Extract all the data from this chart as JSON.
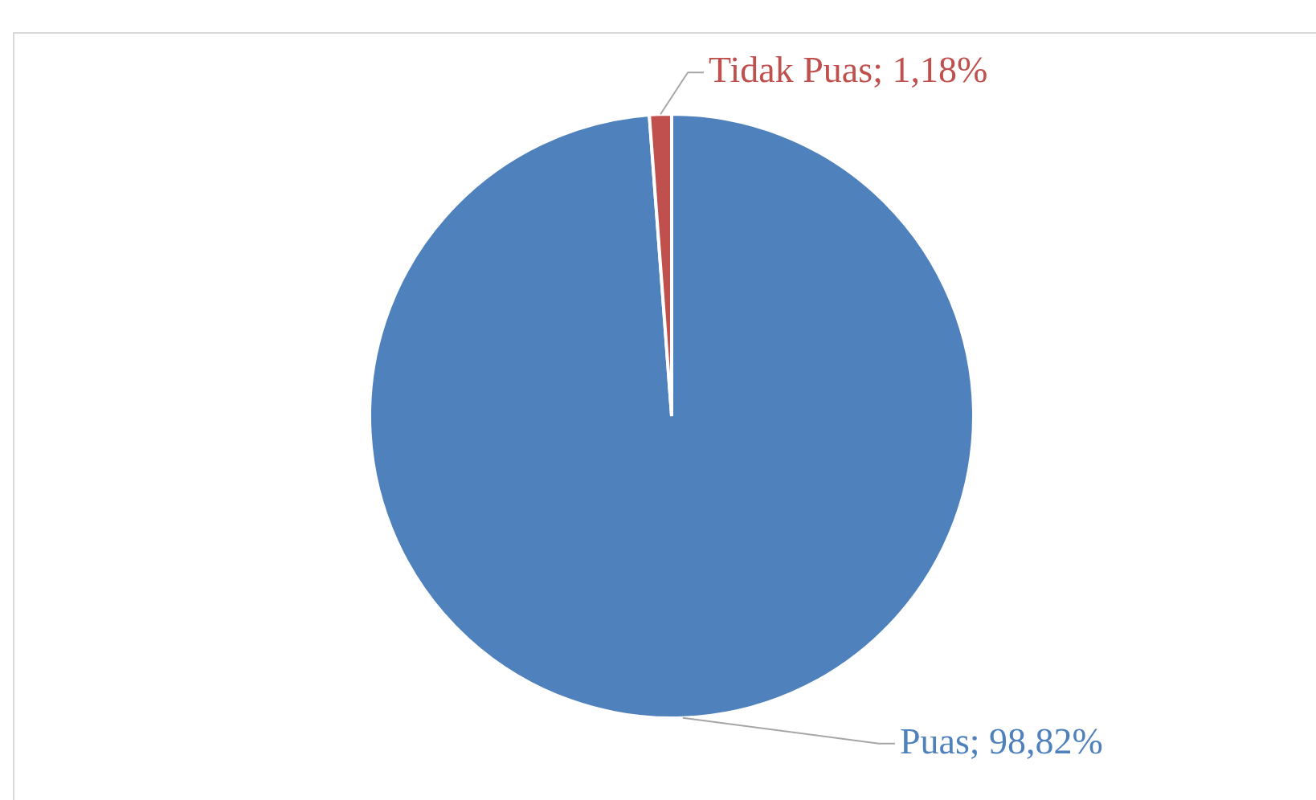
{
  "chart_data": {
    "type": "pie",
    "categories": [
      "Puas",
      "Tidak Puas"
    ],
    "values": [
      98.82,
      1.18
    ],
    "colors": [
      "#4f81bd",
      "#c0504d"
    ],
    "value_labels": [
      "98,82%",
      "1,18%"
    ],
    "legend": false
  }
}
